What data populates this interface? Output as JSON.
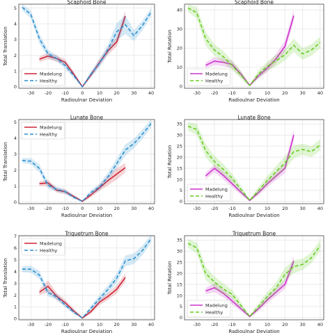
{
  "colors": {
    "madelung_translation": "#cc2233",
    "healthy_translation": "#2a8fd0",
    "madelung_rotation": "#cc33cc",
    "healthy_rotation": "#66cc22",
    "grid": "#e6e6e6"
  },
  "chart_data": [
    {
      "type": "line",
      "title": "Scaphoid Bone",
      "xlabel": "Radioulnar Deviation",
      "ylabel": "Total Translation",
      "xlim": [
        -37,
        42
      ],
      "ylim": [
        -0.1,
        5.25
      ],
      "xticks": [
        -30,
        -20,
        -10,
        0,
        10,
        20,
        30,
        40
      ],
      "yticks": [
        0,
        1,
        2,
        3,
        4,
        5
      ],
      "legend": "lower-left",
      "series": [
        {
          "name": "Madelung",
          "style": "solid",
          "color": "#cc2233",
          "x": [
            -25,
            -20,
            -15,
            -10,
            -5,
            0,
            5,
            10,
            15,
            20,
            25
          ],
          "y": [
            1.75,
            1.95,
            1.8,
            1.55,
            0.8,
            0.0,
            0.75,
            1.55,
            2.3,
            2.85,
            4.5
          ],
          "band": [
            0.18,
            0.2,
            0.2,
            0.2,
            0.15,
            0.05,
            0.15,
            0.2,
            0.25,
            0.3,
            0.35
          ]
        },
        {
          "name": "Healthy",
          "style": "dashed",
          "color": "#2a8fd0",
          "x": [
            -35,
            -30,
            -25,
            -20,
            -15,
            -10,
            -5,
            0,
            5,
            10,
            15,
            20,
            25,
            30,
            35,
            40
          ],
          "y": [
            5.05,
            4.6,
            3.05,
            2.1,
            1.8,
            1.35,
            0.7,
            0.0,
            0.8,
            1.5,
            2.4,
            3.5,
            3.95,
            3.25,
            3.9,
            4.75
          ],
          "band": [
            0.2,
            0.25,
            0.3,
            0.25,
            0.2,
            0.2,
            0.15,
            0.05,
            0.2,
            0.25,
            0.3,
            0.55,
            0.6,
            0.35,
            0.3,
            0.25
          ]
        }
      ]
    },
    {
      "type": "line",
      "title": "Scaphoid Bone",
      "xlabel": "Radioulnar Deviation",
      "ylabel": "Total Rotation",
      "xlim": [
        -37,
        42
      ],
      "ylim": [
        -1,
        43
      ],
      "xticks": [
        -30,
        -20,
        -10,
        0,
        10,
        20,
        30,
        40
      ],
      "yticks": [
        0,
        10,
        20,
        30,
        40
      ],
      "legend": "lower-left",
      "series": [
        {
          "name": "Madelung",
          "style": "solid",
          "color": "#cc33cc",
          "x": [
            -25,
            -20,
            -15,
            -10,
            -5,
            0,
            5,
            10,
            15,
            20,
            25
          ],
          "y": [
            11,
            13.2,
            12.6,
            11.5,
            6.5,
            0.5,
            5.5,
            9.5,
            14.5,
            21,
            37
          ],
          "band": [
            1.5,
            2,
            2,
            2,
            1.5,
            0.5,
            1.5,
            2,
            2.5,
            3,
            3
          ]
        },
        {
          "name": "Healthy",
          "style": "dashed",
          "color": "#66cc22",
          "x": [
            -35,
            -30,
            -25,
            -20,
            -15,
            -10,
            -5,
            0,
            5,
            10,
            15,
            20,
            25,
            30,
            35,
            40
          ],
          "y": [
            41,
            38.5,
            25,
            19,
            15.5,
            11,
            6,
            0.5,
            6.5,
            10.5,
            13.5,
            16.5,
            21.5,
            17,
            19,
            23
          ],
          "band": [
            2,
            3,
            3.5,
            3,
            3,
            2.5,
            2,
            0.5,
            2,
            2.5,
            3,
            3,
            3.5,
            3,
            3,
            3
          ]
        }
      ]
    },
    {
      "type": "line",
      "title": "Lunate Bone",
      "xlabel": "Radioulnar Deviation",
      "ylabel": "Total Translation",
      "xlim": [
        -37,
        42
      ],
      "ylim": [
        -0.1,
        5.15
      ],
      "xticks": [
        -30,
        -20,
        -10,
        0,
        10,
        20,
        30,
        40
      ],
      "yticks": [
        0,
        1,
        2,
        3,
        4,
        5
      ],
      "legend": "upper-left",
      "series": [
        {
          "name": "Madelung",
          "style": "solid",
          "color": "#cc2233",
          "x": [
            -25,
            -20,
            -15,
            -10,
            -5,
            0,
            5,
            10,
            15,
            20,
            25
          ],
          "y": [
            1.15,
            1.2,
            0.75,
            0.65,
            0.35,
            0.05,
            0.45,
            0.9,
            1.35,
            1.75,
            2.15
          ],
          "band": [
            0.15,
            0.2,
            0.15,
            0.15,
            0.1,
            0.05,
            0.15,
            0.2,
            0.3,
            0.35,
            0.3
          ]
        },
        {
          "name": "Healthy",
          "style": "dashed",
          "color": "#2a8fd0",
          "x": [
            -35,
            -30,
            -25,
            -20,
            -15,
            -10,
            -5,
            0,
            5,
            10,
            15,
            20,
            25,
            30,
            35,
            40
          ],
          "y": [
            2.6,
            2.55,
            2.1,
            1.05,
            0.8,
            0.65,
            0.3,
            0.05,
            0.6,
            0.95,
            1.6,
            2.4,
            3.25,
            3.65,
            4.25,
            4.9
          ],
          "band": [
            0.15,
            0.2,
            0.25,
            0.2,
            0.15,
            0.15,
            0.1,
            0.05,
            0.15,
            0.2,
            0.25,
            0.3,
            0.35,
            0.3,
            0.3,
            0.25
          ]
        }
      ]
    },
    {
      "type": "line",
      "title": "Lunate Bone",
      "xlabel": "Radioulnar Deviation",
      "ylabel": "Total Rotation",
      "xlim": [
        -37,
        42
      ],
      "ylim": [
        -1,
        37
      ],
      "xticks": [
        -30,
        -20,
        -10,
        0,
        10,
        20,
        30,
        40
      ],
      "yticks": [
        0,
        5,
        10,
        15,
        20,
        25,
        30,
        35
      ],
      "legend": "lower-left",
      "series": [
        {
          "name": "Madelung",
          "style": "solid",
          "color": "#cc33cc",
          "x": [
            -25,
            -20,
            -15,
            -10,
            -5,
            0,
            5,
            10,
            15,
            20,
            25
          ],
          "y": [
            11.5,
            15,
            11.8,
            8,
            4.2,
            0.5,
            4,
            8,
            11.5,
            15,
            30
          ],
          "band": [
            1.5,
            1.8,
            1.8,
            1.5,
            1.2,
            0.5,
            1.2,
            1.5,
            1.8,
            2.2,
            2.5
          ]
        },
        {
          "name": "Healthy",
          "style": "dashed",
          "color": "#66cc22",
          "x": [
            -35,
            -30,
            -25,
            -20,
            -15,
            -10,
            -5,
            0,
            5,
            10,
            15,
            20,
            25,
            30,
            35,
            40
          ],
          "y": [
            34,
            32.5,
            23,
            18,
            14.5,
            10.5,
            5.5,
            0.5,
            5,
            9.5,
            13.5,
            17.5,
            22.5,
            23.5,
            22.5,
            25.5
          ],
          "band": [
            2,
            2.5,
            3,
            2.5,
            2.5,
            2,
            1.5,
            0.5,
            1.5,
            2,
            2.5,
            3,
            3,
            2.5,
            2.5,
            2.5
          ]
        }
      ]
    },
    {
      "type": "line",
      "title": "Triquetrum Bone",
      "xlabel": "Radioulnar Deviation",
      "ylabel": "Total Translation",
      "xlim": [
        -37,
        42
      ],
      "ylim": [
        -0.1,
        7.05
      ],
      "xticks": [
        -30,
        -20,
        -10,
        0,
        10,
        20,
        30,
        40
      ],
      "yticks": [
        0,
        1,
        2,
        3,
        4,
        5,
        6,
        7
      ],
      "legend": "upper-left",
      "series": [
        {
          "name": "Madelung",
          "style": "solid",
          "color": "#cc2233",
          "x": [
            -25,
            -20,
            -15,
            -10,
            -5,
            0,
            5,
            10,
            15,
            20,
            25
          ],
          "y": [
            2.25,
            2.75,
            1.9,
            1.35,
            0.65,
            0.05,
            0.6,
            1.4,
            1.9,
            2.5,
            3.5
          ],
          "band": [
            0.25,
            0.5,
            0.3,
            0.25,
            0.2,
            0.05,
            0.2,
            0.25,
            0.3,
            0.35,
            0.35
          ]
        },
        {
          "name": "Healthy",
          "style": "dashed",
          "color": "#2a8fd0",
          "x": [
            -35,
            -30,
            -25,
            -20,
            -15,
            -10,
            -5,
            0,
            5,
            10,
            15,
            20,
            25,
            30,
            35,
            40
          ],
          "y": [
            4.2,
            4.2,
            3.7,
            2.2,
            1.85,
            1.15,
            0.55,
            0.05,
            0.9,
            1.7,
            2.5,
            3.45,
            4.9,
            5.1,
            5.8,
            6.8
          ],
          "band": [
            0.25,
            0.3,
            0.35,
            0.3,
            0.25,
            0.2,
            0.15,
            0.05,
            0.2,
            0.3,
            0.35,
            0.4,
            0.45,
            0.45,
            0.4,
            0.35
          ]
        }
      ]
    },
    {
      "type": "line",
      "title": "Triquetrum Bone",
      "xlabel": "Radioulnar Deviation",
      "ylabel": "Total Rotation",
      "xlim": [
        -37,
        42
      ],
      "ylim": [
        -1,
        37
      ],
      "xticks": [
        -30,
        -20,
        -10,
        0,
        10,
        20,
        30,
        40
      ],
      "yticks": [
        0,
        5,
        10,
        15,
        20,
        25,
        30,
        35
      ],
      "legend": "lower-left",
      "series": [
        {
          "name": "Madelung",
          "style": "solid",
          "color": "#cc33cc",
          "x": [
            -25,
            -20,
            -15,
            -10,
            -5,
            0,
            5,
            10,
            15,
            20,
            25
          ],
          "y": [
            12,
            13.5,
            11,
            7.5,
            4,
            0.5,
            4,
            8,
            11.5,
            15,
            25.5
          ],
          "band": [
            1.5,
            2,
            1.8,
            1.5,
            1.2,
            0.5,
            1.2,
            1.5,
            1.8,
            2,
            2.5
          ]
        },
        {
          "name": "Healthy",
          "style": "dashed",
          "color": "#66cc22",
          "x": [
            -35,
            -30,
            -25,
            -20,
            -15,
            -10,
            -5,
            0,
            5,
            10,
            15,
            20,
            25,
            30,
            35,
            40
          ],
          "y": [
            33.5,
            31.5,
            20,
            16,
            13,
            10.5,
            5.5,
            0.5,
            5,
            9.5,
            13.5,
            19.5,
            23,
            24,
            27,
            32.5
          ],
          "band": [
            2,
            2.5,
            3,
            2.5,
            2.5,
            2,
            1.5,
            0.5,
            1.5,
            2,
            2.5,
            3,
            3,
            2.5,
            2.5,
            2.5
          ]
        }
      ]
    }
  ]
}
